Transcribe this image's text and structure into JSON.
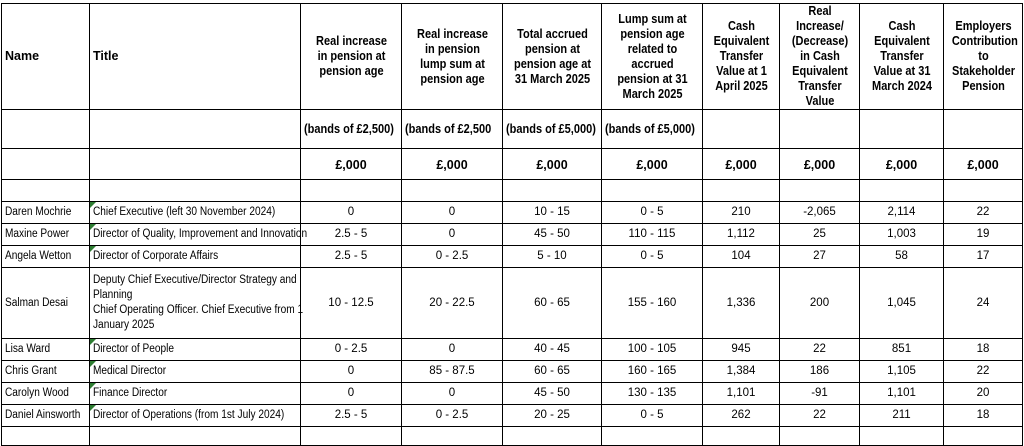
{
  "headers": {
    "name": "Name",
    "title": "Title",
    "c1": "Real increase in pension at pension age",
    "c2": "Real increase in pension lump sum at pension age",
    "c3": "Total accrued pension at pension age at 31 March 2025",
    "c4": "Lump sum at pension age related to accrued pension at 31 March 2025",
    "c5": "Cash Equivalent Transfer Value at 1 April 2025",
    "c6": "Real Increase/ (Decrease) in Cash Equivalent Transfer Value",
    "c7": "Cash Equivalent Transfer Value at 31 March 2024",
    "c8": "Employers Contribution to Stakeholder Pension"
  },
  "bands": {
    "c1": "(bands of £2,500)",
    "c2": "(bands of £2,500",
    "c3": "(bands of £5,000)",
    "c4": "(bands of £5,000)"
  },
  "units": {
    "c1": "£,000",
    "c2": "£,000",
    "c3": "£,000",
    "c4": "£,000",
    "c5": "£,000",
    "c6": "£,000",
    "c7": "£,000",
    "c8": "£,000"
  },
  "rows": [
    {
      "name": "Daren Mochrie",
      "title": "Chief Executive (left 30 November 2024)",
      "c1": "0",
      "c2": "0",
      "c3": "10 - 15",
      "c4": "0 - 5",
      "c5": "210",
      "c6": "-2,065",
      "c7": "2,114",
      "c8": "22"
    },
    {
      "name": "Maxine Power",
      "title": "Director of Quality, Improvement and Innovation",
      "c1": "2.5 - 5",
      "c2": "0",
      "c3": "45 - 50",
      "c4": "110 - 115",
      "c5": "1,112",
      "c6": "25",
      "c7": "1,003",
      "c8": "19"
    },
    {
      "name": "Angela Wetton",
      "title": "Director of Corporate Affairs",
      "c1": "2.5 - 5",
      "c2": "0 - 2.5",
      "c3": "5 - 10",
      "c4": "0 - 5",
      "c5": "104",
      "c6": "27",
      "c7": "58",
      "c8": "17"
    },
    {
      "name": "Salman Desai",
      "title_line1": "Deputy Chief Executive/Director Strategy and",
      "title_line2": "Planning",
      "title_line3": "Chief Operating Officer. Chief Executive from 1",
      "title_line4": "January 2025",
      "c1": "10 - 12.5",
      "c2": "20 - 22.5",
      "c3": "60 - 65",
      "c4": "155 - 160",
      "c5": "1,336",
      "c6": "200",
      "c7": "1,045",
      "c8": "24"
    },
    {
      "name": "Lisa Ward",
      "title": "Director of People",
      "c1": "0 - 2.5",
      "c2": "0",
      "c3": "40 - 45",
      "c4": "100 - 105",
      "c5": "945",
      "c6": "22",
      "c7": "851",
      "c8": "18"
    },
    {
      "name": "Chris Grant",
      "title": "Medical Director",
      "c1": "0",
      "c2": "85 - 87.5",
      "c3": "60 - 65",
      "c4": "160 - 165",
      "c5": "1,384",
      "c6": "186",
      "c7": "1,105",
      "c8": "22"
    },
    {
      "name": "Carolyn Wood",
      "title": "Finance Director",
      "c1": "0",
      "c2": "0",
      "c3": "45 - 50",
      "c4": "130 - 135",
      "c5": "1,101",
      "c6": "-91",
      "c7": "1,101",
      "c8": "20"
    },
    {
      "name": "Daniel Ainsworth",
      "title": "Director of Operations  (from 1st July 2024)",
      "c1": "2.5 - 5",
      "c2": "0 - 2.5",
      "c3": "20 - 25",
      "c4": "0 - 5",
      "c5": "262",
      "c6": "22",
      "c7": "211",
      "c8": "18"
    }
  ],
  "colors": {
    "border": "#000000",
    "comment_marker": "#2e7d32"
  }
}
